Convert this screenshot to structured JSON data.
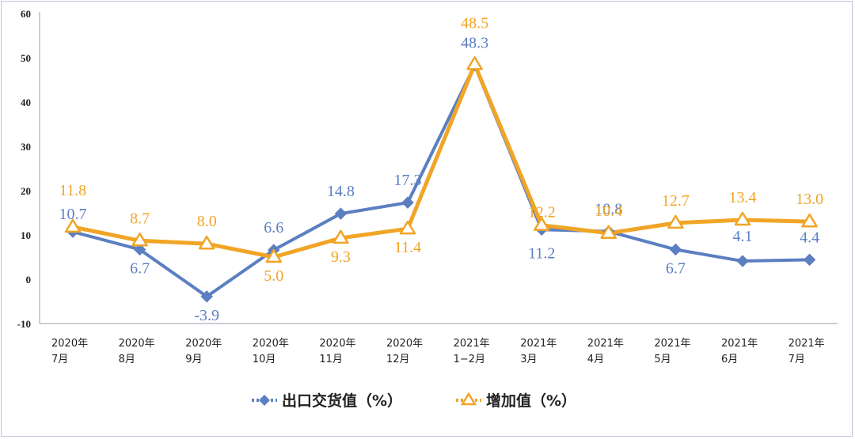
{
  "chart_data": {
    "type": "line",
    "categories": [
      [
        "2020年",
        "7月"
      ],
      [
        "2020年",
        "8月"
      ],
      [
        "2020年",
        "9月"
      ],
      [
        "2020年",
        "10月"
      ],
      [
        "2020年",
        "11月"
      ],
      [
        "2020年",
        "12月"
      ],
      [
        "2021年",
        "1−2月"
      ],
      [
        "2021年",
        "3月"
      ],
      [
        "2021年",
        "4月"
      ],
      [
        "2021年",
        "5月"
      ],
      [
        "2021年",
        "6月"
      ],
      [
        "2021年",
        "7月"
      ]
    ],
    "yticks": [
      "60",
      "50",
      "40",
      "30",
      "20",
      "10",
      "0",
      "-10"
    ],
    "ylim": [
      -10,
      60
    ],
    "grid": false,
    "legend_position": "bottom",
    "series": [
      {
        "name": "出口交货值（%）",
        "color": "#5b7fc1",
        "marker": "diamond",
        "values": [
          10.7,
          6.7,
          -3.9,
          6.6,
          14.8,
          17.3,
          48.3,
          11.2,
          10.8,
          6.7,
          4.1,
          4.4
        ],
        "labels": [
          "10.7",
          "6.7",
          "-3.9",
          "6.6",
          "14.8",
          "17.3",
          "48.3",
          "11.2",
          "10.8",
          "6.7",
          "4.1",
          "4.4"
        ]
      },
      {
        "name": "增加值（%）",
        "color": "#f0a526",
        "marker": "triangle",
        "values": [
          11.8,
          8.7,
          8.0,
          5.0,
          9.3,
          11.4,
          48.5,
          12.2,
          10.4,
          12.7,
          13.4,
          13.0
        ],
        "labels": [
          "11.8",
          "8.7",
          "8.0",
          "5.0",
          "9.3",
          "11.4",
          "48.5",
          "12.2",
          "10.4",
          "12.7",
          "13.4",
          "13.0"
        ]
      }
    ]
  }
}
